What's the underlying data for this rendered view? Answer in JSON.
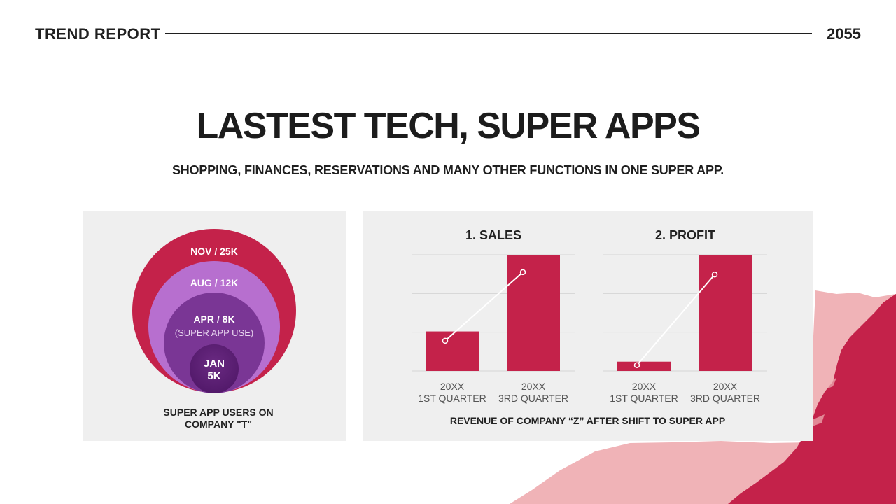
{
  "header": {
    "brand": "TREND REPORT",
    "year": "2055"
  },
  "title": "LASTEST TECH, SUPER APPS",
  "subtitle": "SHOPPING, FINANCES, RESERVATIONS AND MANY OTHER FUNCTIONS IN ONE SUPER APP.",
  "colors": {
    "crimson": "#c4224a",
    "pink": "#f0b3b7",
    "lavender": "#b76fcf",
    "purple": "#7a3695",
    "darkPurple": "#5b2173",
    "panel": "#efefef"
  },
  "users_panel": {
    "circles": [
      {
        "label": "NOV / 25K"
      },
      {
        "label": "AUG / 12K"
      },
      {
        "label": "APR / 8K",
        "note": "(SUPER APP USE)"
      },
      {
        "label_line1": "JAN",
        "label_line2": "5K"
      }
    ],
    "caption_line1": "SUPER APP USERS ON",
    "caption_line2": "COMPANY \"T\""
  },
  "revenue_panel": {
    "caption": "REVENUE OF COMPANY “Z” AFTER SHIFT TO SUPER APP"
  },
  "chart_data": [
    {
      "type": "bar",
      "title": "1. SALES",
      "categories": [
        [
          "20XX",
          "1ST QUARTER"
        ],
        [
          "20XX",
          "3RD QUARTER"
        ]
      ],
      "values": [
        34,
        100
      ],
      "line_values": [
        26,
        85
      ],
      "ylim": [
        0,
        100
      ]
    },
    {
      "type": "bar",
      "title": "2. PROFIT",
      "categories": [
        [
          "20XX",
          "1ST QUARTER"
        ],
        [
          "20XX",
          "3RD QUARTER"
        ]
      ],
      "values": [
        8,
        100
      ],
      "line_values": [
        5,
        83
      ],
      "ylim": [
        0,
        100
      ]
    }
  ]
}
